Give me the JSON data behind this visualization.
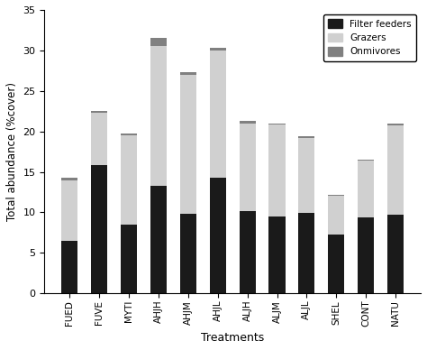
{
  "categories": [
    "FUED",
    "FUVE",
    "MYTI",
    "AHJH",
    "AHJM",
    "AHJL",
    "ALJH",
    "ALJM",
    "ALJL",
    "SHEL",
    "CONT",
    "NATU"
  ],
  "filter_feeders": [
    6.5,
    15.8,
    8.5,
    13.3,
    9.8,
    14.3,
    10.2,
    9.5,
    9.9,
    7.3,
    9.4,
    9.7
  ],
  "grazers": [
    7.5,
    6.5,
    11.0,
    17.2,
    17.2,
    15.7,
    10.8,
    11.3,
    9.3,
    4.8,
    7.0,
    11.0
  ],
  "omnivores": [
    0.3,
    0.2,
    0.2,
    1.0,
    0.3,
    0.3,
    0.3,
    0.2,
    0.2,
    0.1,
    0.1,
    0.3
  ],
  "color_filter": "#1a1a1a",
  "color_grazers": "#d0d0d0",
  "color_omni": "#808080",
  "ylabel": "Total abundance (%cover)",
  "xlabel": "Treatments",
  "ylim": [
    0,
    35
  ],
  "yticks": [
    0,
    5,
    10,
    15,
    20,
    25,
    30,
    35
  ],
  "legend_labels": [
    "Filter feeders",
    "Grazers",
    "Onmivores"
  ],
  "bar_width": 0.55,
  "figsize": [
    4.74,
    3.88
  ],
  "dpi": 100
}
